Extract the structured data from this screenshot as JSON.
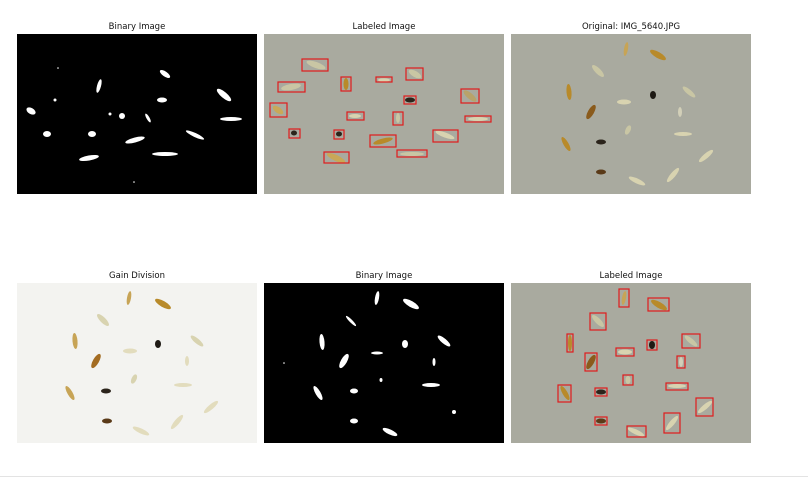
{
  "figure": {
    "panels": [
      {
        "title": "Binary Image"
      },
      {
        "title": "Labeled Image"
      },
      {
        "title": "Original: IMG_5640.JPG"
      },
      {
        "title": "Gain Division"
      },
      {
        "title": "Binary Image"
      },
      {
        "title": "Labeled Image"
      }
    ]
  },
  "colors": {
    "binary_bg": "#000000",
    "binary_fg": "#ffffff",
    "camera_bg": "#a9aa9f",
    "paper_bg": "#f3f3f0",
    "box": "#e01c1c",
    "grain_light": "#d8d3b0",
    "grain_golden": "#b88a2a",
    "grain_dark": "#2b241b"
  }
}
